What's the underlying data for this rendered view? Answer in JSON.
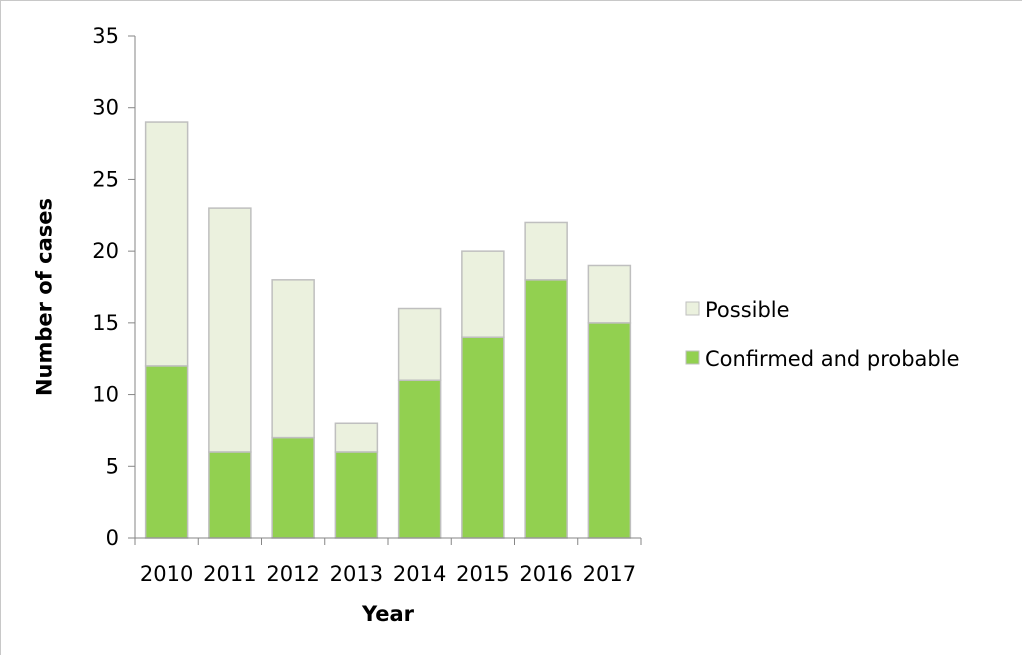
{
  "chart_data": {
    "type": "bar",
    "stacked": true,
    "title": "",
    "xlabel": "Year",
    "ylabel": "Number of cases",
    "categories": [
      "2010",
      "2011",
      "2012",
      "2013",
      "2014",
      "2015",
      "2016",
      "2017"
    ],
    "series": [
      {
        "name": "Confirmed and probable",
        "values": [
          12,
          6,
          7,
          6,
          11,
          14,
          18,
          15
        ],
        "color": "#92d050"
      },
      {
        "name": "Possible",
        "values": [
          17,
          17,
          11,
          2,
          5,
          6,
          4,
          4
        ],
        "color": "#ebf1de"
      }
    ],
    "ylim": [
      0,
      35
    ],
    "yticks": [
      "0",
      "5",
      "10",
      "15",
      "20",
      "25",
      "30",
      "35"
    ],
    "grid": false,
    "legend": {
      "position": "right",
      "entries": [
        "Possible",
        "Confirmed and probable"
      ]
    },
    "bar_border_color": "#bfbfbf",
    "axis_color": "#868686"
  }
}
